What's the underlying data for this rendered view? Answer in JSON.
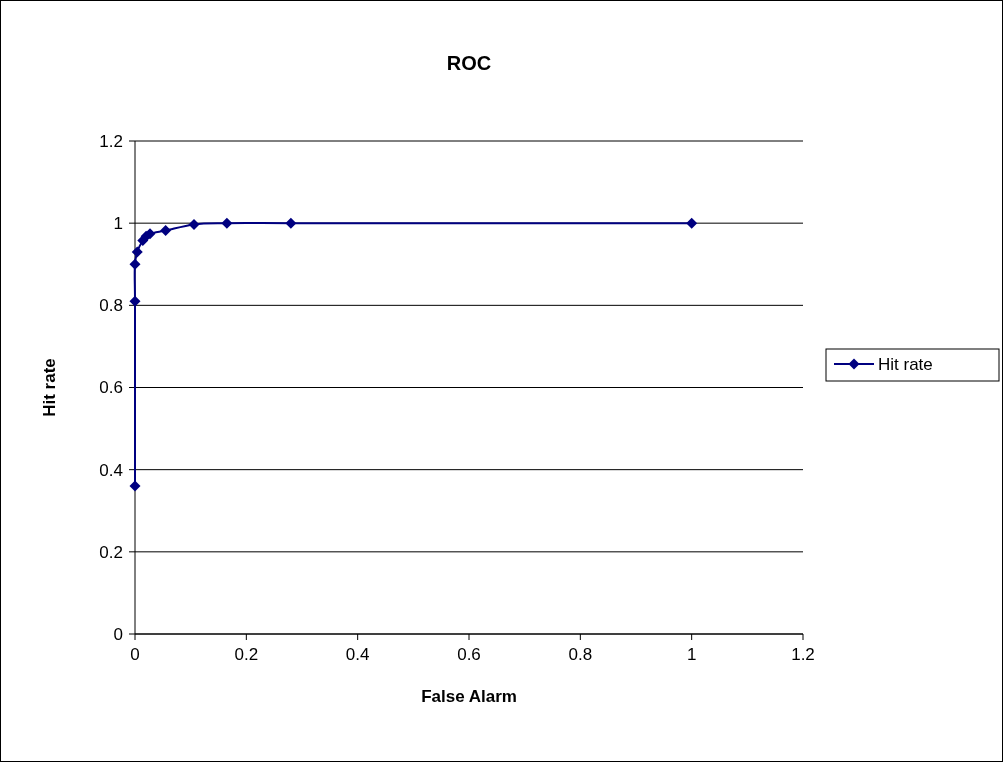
{
  "chart_data": {
    "type": "line",
    "title": "ROC",
    "xlabel": "False Alarm",
    "ylabel": "Hit rate",
    "series": [
      {
        "name": "Hit rate",
        "color": "#000080",
        "x": [
          0,
          0,
          0,
          0.004,
          0.014,
          0.02,
          0.027,
          0.055,
          0.106,
          0.165,
          0.28,
          1
        ],
        "values": [
          0.36,
          0.81,
          0.9,
          0.93,
          0.958,
          0.968,
          0.974,
          0.982,
          0.997,
          1,
          1,
          1
        ]
      }
    ],
    "xlim": [
      0,
      1.2
    ],
    "xticks": [
      0,
      0.2,
      0.4,
      0.6,
      0.8,
      1,
      1.2
    ],
    "ylim": [
      0,
      1.2
    ],
    "yticks": [
      0,
      0.2,
      0.4,
      0.6,
      0.8,
      1,
      1.2
    ],
    "grid": "y",
    "legend": "right",
    "marker": "diamond",
    "line_style": "solid"
  }
}
